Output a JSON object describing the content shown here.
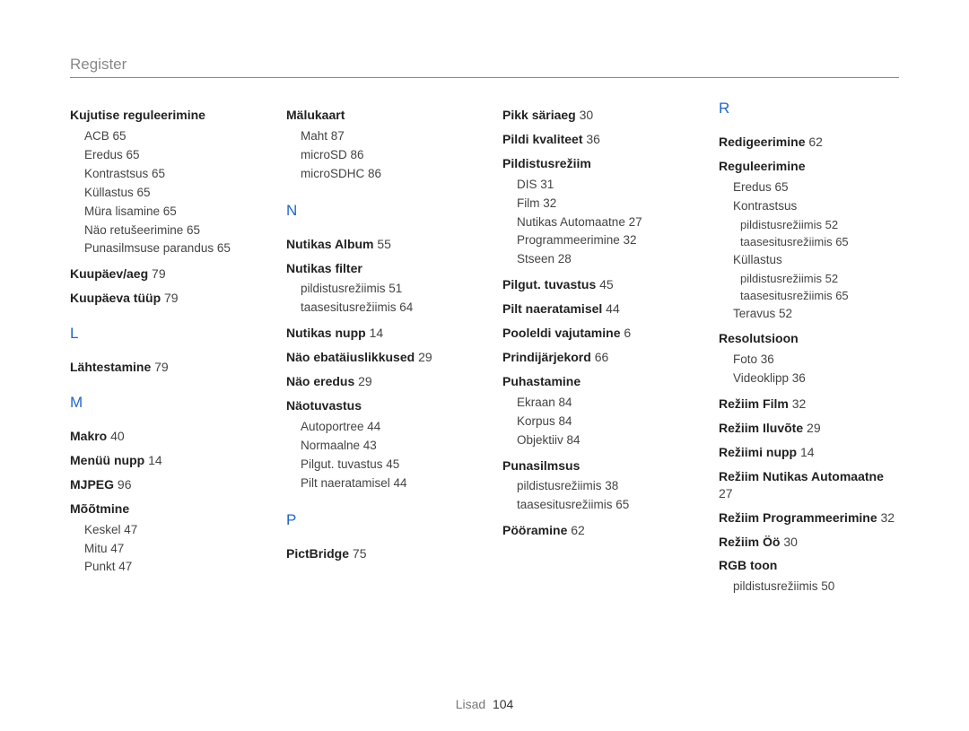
{
  "section_title": "Register",
  "footer": {
    "label": "Lisad",
    "page": "104"
  },
  "columns": [
    {
      "items": [
        {
          "type": "bold",
          "label": "Kujutise reguleerimine",
          "page": ""
        },
        {
          "type": "sub",
          "label": "ACB",
          "page": "65"
        },
        {
          "type": "sub",
          "label": "Eredus",
          "page": "65"
        },
        {
          "type": "sub",
          "label": "Kontrastsus",
          "page": "65"
        },
        {
          "type": "sub",
          "label": "Küllastus",
          "page": "65"
        },
        {
          "type": "sub",
          "label": "Müra lisamine",
          "page": "65"
        },
        {
          "type": "sub",
          "label": "Näo retušeerimine",
          "page": "65"
        },
        {
          "type": "sub",
          "label": "Punasilmsuse parandus",
          "page": "65"
        },
        {
          "type": "bold",
          "label": "Kuupäev/aeg",
          "page": "79"
        },
        {
          "type": "bold",
          "label": "Kuupäeva tüüp",
          "page": "79"
        },
        {
          "type": "letter",
          "label": "L"
        },
        {
          "type": "bold",
          "label": "Lähtestamine",
          "page": "79"
        },
        {
          "type": "letter",
          "label": "M"
        },
        {
          "type": "bold",
          "label": "Makro",
          "page": "40"
        },
        {
          "type": "bold",
          "label": "Menüü nupp",
          "page": "14"
        },
        {
          "type": "bold",
          "label": "MJPEG",
          "page": "96"
        },
        {
          "type": "bold",
          "label": "Mõõtmine",
          "page": ""
        },
        {
          "type": "sub",
          "label": "Keskel",
          "page": "47"
        },
        {
          "type": "sub",
          "label": "Mitu",
          "page": "47"
        },
        {
          "type": "sub",
          "label": "Punkt",
          "page": "47"
        }
      ]
    },
    {
      "items": [
        {
          "type": "bold",
          "label": "Mälukaart",
          "page": ""
        },
        {
          "type": "sub",
          "label": "Maht",
          "page": "87"
        },
        {
          "type": "sub",
          "label": "microSD",
          "page": "86"
        },
        {
          "type": "sub",
          "label": "microSDHC",
          "page": "86"
        },
        {
          "type": "letter",
          "label": "N"
        },
        {
          "type": "bold",
          "label": "Nutikas Album",
          "page": "55"
        },
        {
          "type": "bold",
          "label": "Nutikas filter",
          "page": ""
        },
        {
          "type": "sub",
          "label": "pildistusrežiimis",
          "page": "51"
        },
        {
          "type": "sub",
          "label": "taasesitusrežiimis",
          "page": "64"
        },
        {
          "type": "bold",
          "label": "Nutikas nupp",
          "page": "14"
        },
        {
          "type": "bold",
          "label": "Näo ebatäiuslikkused",
          "page": "29"
        },
        {
          "type": "bold",
          "label": "Näo eredus",
          "page": "29"
        },
        {
          "type": "bold",
          "label": "Näotuvastus",
          "page": ""
        },
        {
          "type": "sub",
          "label": "Autoportree",
          "page": "44"
        },
        {
          "type": "sub",
          "label": "Normaalne",
          "page": "43"
        },
        {
          "type": "sub",
          "label": "Pilgut. tuvastus",
          "page": "45"
        },
        {
          "type": "sub",
          "label": "Pilt naeratamisel",
          "page": "44"
        },
        {
          "type": "letter",
          "label": "P"
        },
        {
          "type": "bold",
          "label": "PictBridge",
          "page": "75"
        }
      ]
    },
    {
      "items": [
        {
          "type": "bold",
          "label": "Pikk säriaeg",
          "page": "30"
        },
        {
          "type": "bold",
          "label": "Pildi kvaliteet",
          "page": "36"
        },
        {
          "type": "bold",
          "label": "Pildistusrežiim",
          "page": ""
        },
        {
          "type": "sub",
          "label": "DIS",
          "page": "31"
        },
        {
          "type": "sub",
          "label": "Film",
          "page": "32"
        },
        {
          "type": "sub",
          "label": "Nutikas Automaatne",
          "page": "27"
        },
        {
          "type": "sub",
          "label": "Programmeerimine",
          "page": "32"
        },
        {
          "type": "sub",
          "label": "Stseen",
          "page": "28"
        },
        {
          "type": "bold",
          "label": "Pilgut. tuvastus",
          "page": "45"
        },
        {
          "type": "bold",
          "label": "Pilt naeratamisel",
          "page": "44"
        },
        {
          "type": "bold",
          "label": "Pooleldi vajutamine",
          "page": "6"
        },
        {
          "type": "bold",
          "label": "Prindijärjekord",
          "page": "66"
        },
        {
          "type": "bold",
          "label": "Puhastamine",
          "page": ""
        },
        {
          "type": "sub",
          "label": "Ekraan",
          "page": "84"
        },
        {
          "type": "sub",
          "label": "Korpus",
          "page": "84"
        },
        {
          "type": "sub",
          "label": "Objektiiv",
          "page": "84"
        },
        {
          "type": "bold",
          "label": "Punasilmsus",
          "page": ""
        },
        {
          "type": "sub",
          "label": "pildistusrežiimis",
          "page": "38"
        },
        {
          "type": "sub",
          "label": "taasesitusrežiimis",
          "page": "65"
        },
        {
          "type": "bold",
          "label": "Pööramine",
          "page": "62"
        }
      ]
    },
    {
      "items": [
        {
          "type": "letter",
          "label": "R"
        },
        {
          "type": "bold",
          "label": "Redigeerimine",
          "page": "62"
        },
        {
          "type": "bold",
          "label": "Reguleerimine",
          "page": ""
        },
        {
          "type": "sub",
          "label": "Eredus",
          "page": "65"
        },
        {
          "type": "sub",
          "label": "Kontrastsus",
          "page": ""
        },
        {
          "type": "subsub",
          "label": "pildistusrežiimis",
          "page": "52"
        },
        {
          "type": "subsub",
          "label": "taasesitusrežiimis",
          "page": "65"
        },
        {
          "type": "sub",
          "label": "Küllastus",
          "page": ""
        },
        {
          "type": "subsub",
          "label": "pildistusrežiimis",
          "page": "52"
        },
        {
          "type": "subsub",
          "label": "taasesitusrežiimis",
          "page": "65"
        },
        {
          "type": "sub",
          "label": "Teravus",
          "page": "52"
        },
        {
          "type": "bold",
          "label": "Resolutsioon",
          "page": ""
        },
        {
          "type": "sub",
          "label": "Foto",
          "page": "36"
        },
        {
          "type": "sub",
          "label": "Videoklipp",
          "page": "36"
        },
        {
          "type": "bold",
          "label": "Režiim Film",
          "page": "32"
        },
        {
          "type": "bold",
          "label": "Režiim Iluvõte",
          "page": "29"
        },
        {
          "type": "bold",
          "label": "Režiimi nupp",
          "page": "14"
        },
        {
          "type": "bold",
          "label": "Režiim Nutikas Automaatne",
          "page": "27"
        },
        {
          "type": "bold",
          "label": "Režiim Programmeerimine",
          "page": "32"
        },
        {
          "type": "bold",
          "label": "Režiim Öö",
          "page": "30"
        },
        {
          "type": "bold",
          "label": "RGB toon",
          "page": ""
        },
        {
          "type": "sub",
          "label": "pildistusrežiimis",
          "page": "50"
        }
      ]
    }
  ]
}
